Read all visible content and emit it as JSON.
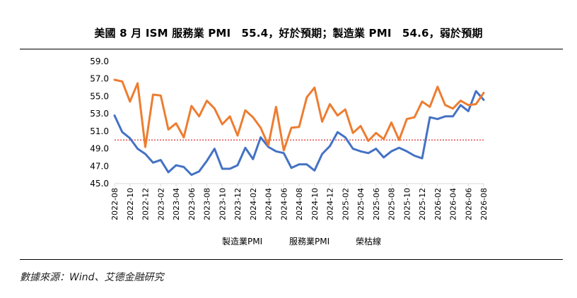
{
  "title": "美國 8 月 ISM 服務業 PMI　55.4，好於預期；製造業 PMI　54.6，弱於預期",
  "source": "數據來源：Wind、艾德金融研究",
  "colors": {
    "manufacturing": "#4472c4",
    "services": "#ed7d31",
    "threshold": "#e03030",
    "axis": "#d9d9d9"
  },
  "chart_data": {
    "type": "line",
    "ylim": [
      45.0,
      59.0
    ],
    "yticks": [
      "45.0",
      "47.0",
      "49.0",
      "51.0",
      "53.0",
      "55.0",
      "57.0",
      "59.0"
    ],
    "grid": false,
    "legend_position": "bottom",
    "threshold": {
      "name": "榮枯線",
      "value": 50
    },
    "x": [
      "2022-08",
      "2022-09",
      "2022-10",
      "2022-11",
      "2022-12",
      "2023-01",
      "2023-02",
      "2023-03",
      "2023-04",
      "2023-05",
      "2023-06",
      "2023-07",
      "2023-08",
      "2023-09",
      "2023-10",
      "2023-11",
      "2023-12",
      "2024-01",
      "2024-02",
      "2024-03",
      "2024-04",
      "2024-05",
      "2024-06",
      "2024-07",
      "2024-08",
      "2024-09",
      "2024-10",
      "2024-11",
      "2024-12",
      "2025-01",
      "2025-02",
      "2025-03",
      "2025-04",
      "2025-05",
      "2025-06",
      "2025-07",
      "2025-08",
      "2025-09",
      "2025-10",
      "2025-11",
      "2025-12",
      "2026-01",
      "2026-02",
      "2026-03",
      "2026-04",
      "2026-05",
      "2026-06",
      "2026-07",
      "2026-08"
    ],
    "xtick_labels": [
      "2022-08",
      "2022-10",
      "2022-12",
      "2023-02",
      "2023-04",
      "2023-06",
      "2023-08",
      "2023-10",
      "2023-12",
      "2024-02",
      "2024-04",
      "2024-06",
      "2024-08",
      "2024-10",
      "2024-12",
      "2025-02",
      "2025-04",
      "2025-06",
      "2025-08",
      "2025-10",
      "2025-12",
      "2026-02",
      "2026-04",
      "2026-06",
      "2026-08"
    ],
    "series": [
      {
        "name": "製造業PMI",
        "values": [
          52.8,
          50.9,
          50.2,
          49.0,
          48.4,
          47.4,
          47.7,
          46.3,
          47.1,
          46.9,
          46.0,
          46.4,
          47.6,
          49.0,
          46.7,
          46.7,
          47.1,
          49.1,
          47.8,
          50.3,
          49.2,
          48.7,
          48.5,
          46.8,
          47.2,
          47.2,
          46.5,
          48.4,
          49.3,
          50.9,
          50.3,
          49.0,
          48.7,
          48.5,
          49.0,
          48.0,
          48.7,
          49.1,
          48.7,
          48.2,
          47.9,
          52.6,
          52.4,
          52.7,
          52.7,
          54.0,
          53.3,
          55.6,
          54.6
        ]
      },
      {
        "name": "服務業PMI",
        "values": [
          56.9,
          56.7,
          54.4,
          56.5,
          49.2,
          55.2,
          55.1,
          51.2,
          51.9,
          50.3,
          53.9,
          52.7,
          54.5,
          53.6,
          51.8,
          52.7,
          50.5,
          53.4,
          52.6,
          51.4,
          49.4,
          53.8,
          48.8,
          51.4,
          51.5,
          54.9,
          56.0,
          52.1,
          54.1,
          52.8,
          53.5,
          50.8,
          51.6,
          49.9,
          50.8,
          50.1,
          52.0,
          50.0,
          52.4,
          52.6,
          54.4,
          53.8,
          56.1,
          54.0,
          53.6,
          54.5,
          54.0,
          54.1,
          55.4
        ]
      }
    ]
  }
}
